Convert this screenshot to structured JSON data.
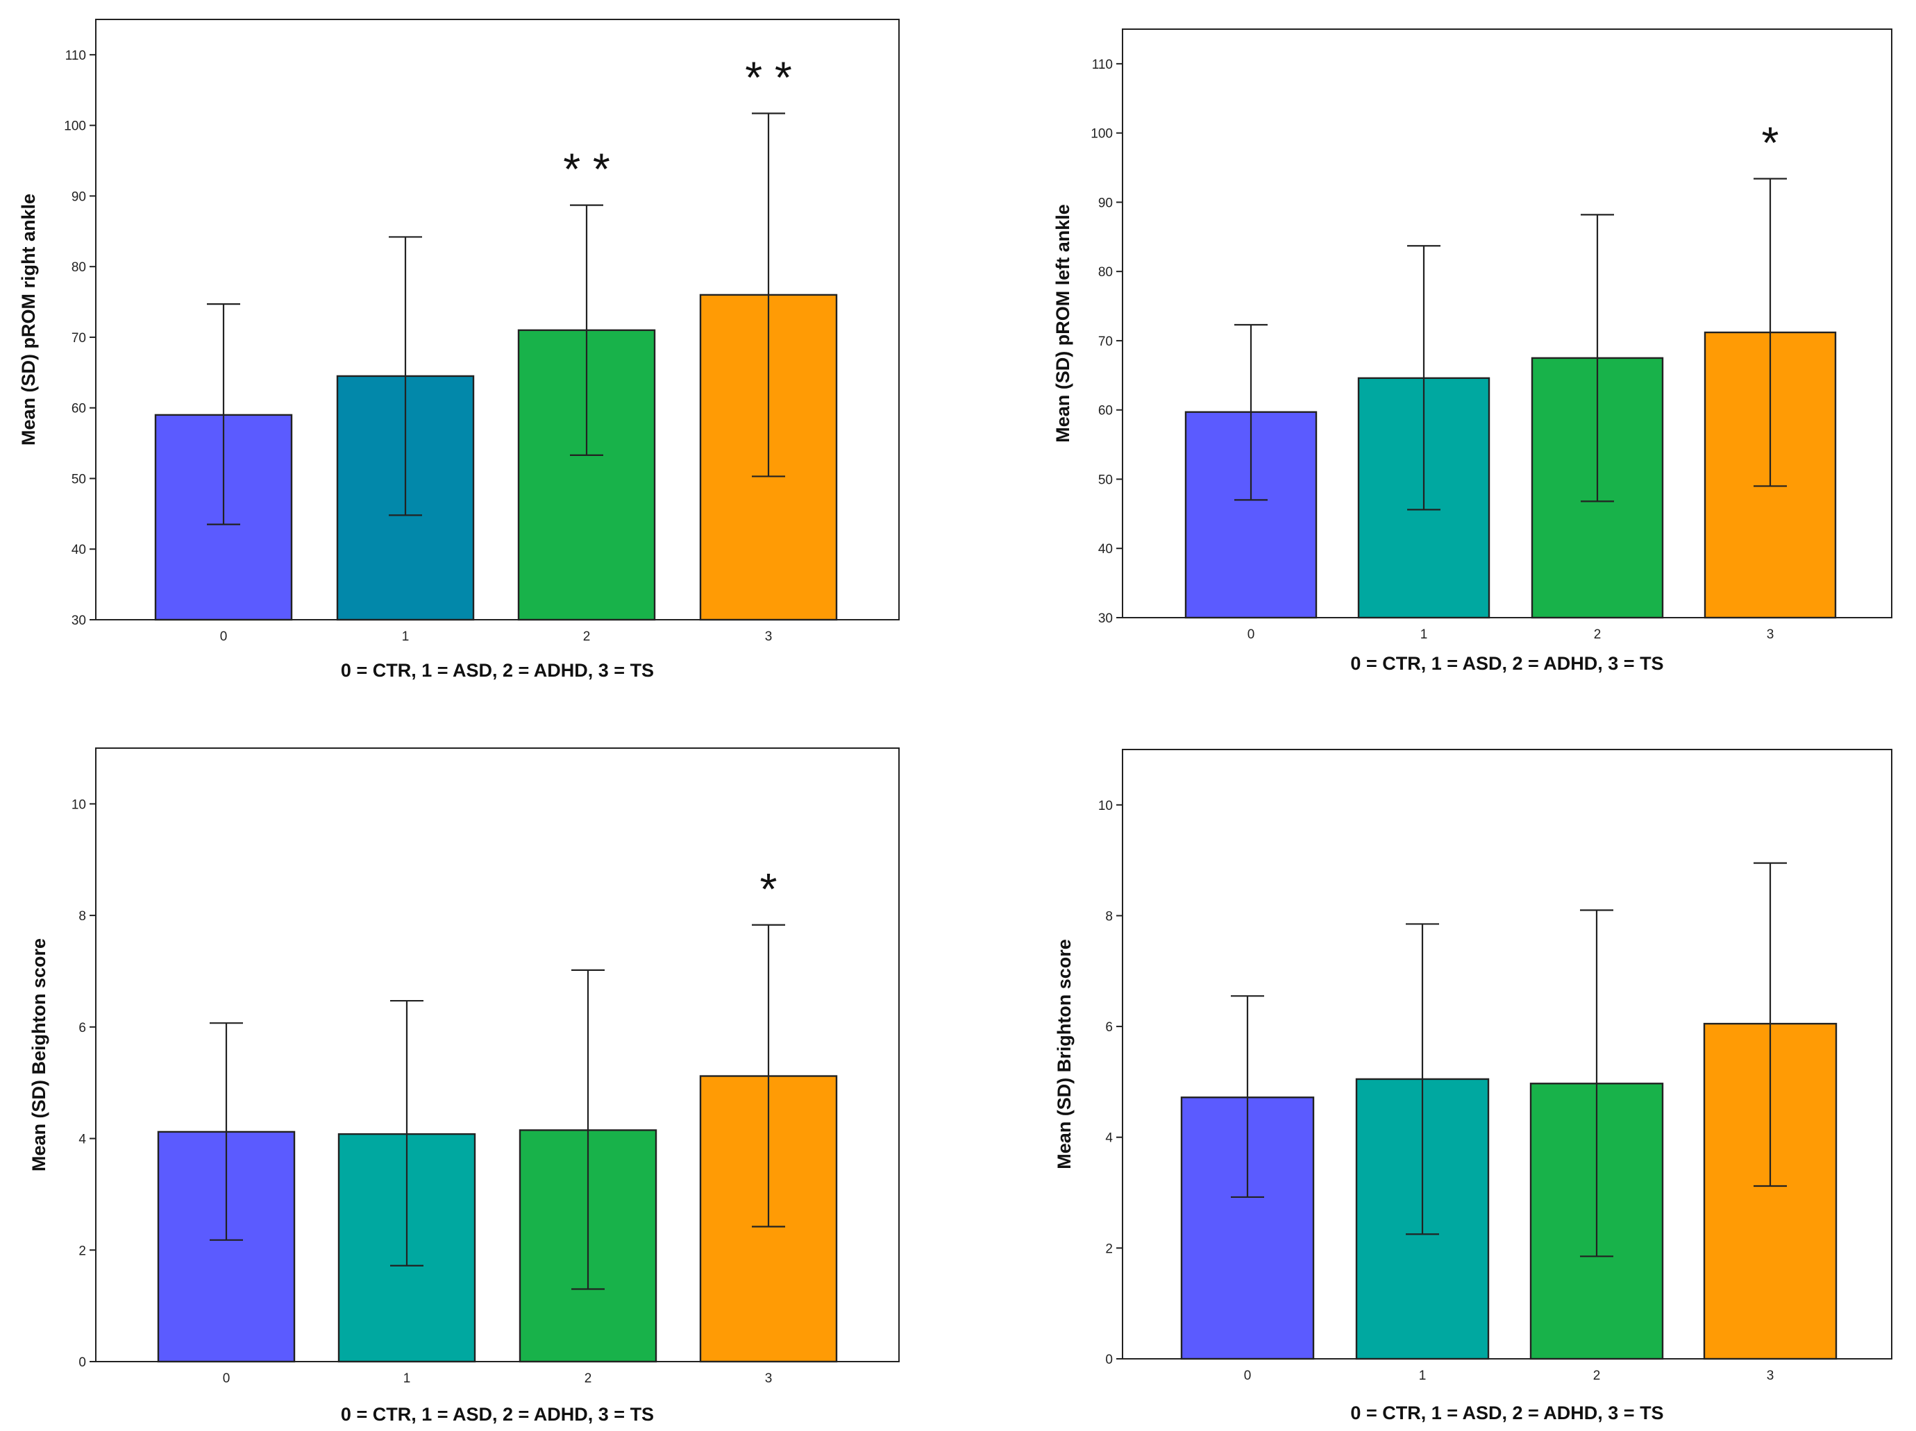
{
  "chart_data": [
    {
      "type": "bar",
      "ylabel": "Mean (SD) pROM right ankle",
      "xlabel": "0 = CTR, 1 = ASD, 2 = ADHD, 3 = TS",
      "categories": [
        "0",
        "1",
        "2",
        "3"
      ],
      "values": [
        59.0,
        64.5,
        71.0,
        76.0
      ],
      "error_low": [
        43.5,
        44.8,
        53.3,
        50.3
      ],
      "error_high": [
        74.7,
        84.2,
        88.7,
        101.7
      ],
      "significance": [
        "",
        "",
        "**",
        "**"
      ],
      "ylim": [
        30,
        115
      ],
      "yticks": [
        30,
        40,
        50,
        60,
        70,
        80,
        90,
        100,
        110
      ],
      "colors": [
        "#5b5bff",
        "#0288aa",
        "#18b24a",
        "#ff9b05"
      ]
    },
    {
      "type": "bar",
      "ylabel": "Mean (SD) pROM left ankle",
      "xlabel": "0 = CTR, 1 = ASD, 2 = ADHD, 3 = TS",
      "categories": [
        "0",
        "1",
        "2",
        "3"
      ],
      "values": [
        59.7,
        64.6,
        67.5,
        71.2
      ],
      "error_low": [
        47.0,
        45.6,
        46.8,
        49.0
      ],
      "error_high": [
        72.3,
        83.7,
        88.2,
        93.4
      ],
      "significance": [
        "",
        "",
        "",
        "*"
      ],
      "ylim": [
        30,
        115
      ],
      "yticks": [
        30,
        40,
        50,
        60,
        70,
        80,
        90,
        100,
        110
      ],
      "colors": [
        "#5b5bff",
        "#00a8a0",
        "#18b24a",
        "#ff9b05"
      ]
    },
    {
      "type": "bar",
      "ylabel": "Mean (SD) Beighton score",
      "xlabel": "0 = CTR, 1 = ASD, 2 = ADHD, 3 = TS",
      "categories": [
        "0",
        "1",
        "2",
        "3"
      ],
      "values": [
        4.12,
        4.08,
        4.15,
        5.12
      ],
      "error_low": [
        2.18,
        1.72,
        1.3,
        2.42
      ],
      "error_high": [
        6.07,
        6.47,
        7.02,
        7.83
      ],
      "significance": [
        "",
        "",
        "",
        "*"
      ],
      "ylim": [
        0,
        11
      ],
      "yticks": [
        0,
        2,
        4,
        6,
        8,
        10
      ],
      "colors": [
        "#5b5bff",
        "#00a8a0",
        "#18b24a",
        "#ff9b05"
      ]
    },
    {
      "type": "bar",
      "ylabel": "Mean (SD) Brighton score",
      "xlabel": "0 = CTR, 1 = ASD, 2 = ADHD, 3 = TS",
      "categories": [
        "0",
        "1",
        "2",
        "3"
      ],
      "values": [
        4.72,
        5.05,
        4.97,
        6.05
      ],
      "error_low": [
        2.92,
        2.25,
        1.85,
        3.12
      ],
      "error_high": [
        6.55,
        7.85,
        8.1,
        8.95
      ],
      "significance": [
        "",
        "",
        "",
        ""
      ],
      "ylim": [
        0,
        11
      ],
      "yticks": [
        0,
        2,
        4,
        6,
        8,
        10
      ],
      "colors": [
        "#5b5bff",
        "#00a8a0",
        "#18b24a",
        "#ff9b05"
      ]
    }
  ]
}
